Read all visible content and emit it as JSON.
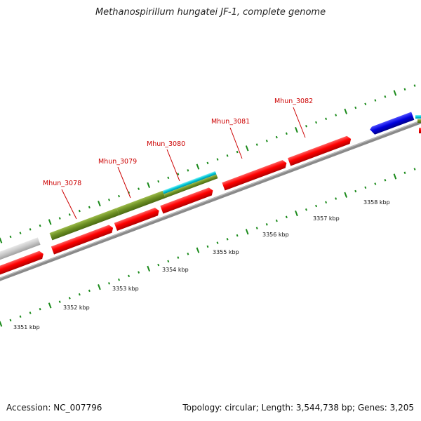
{
  "title": "Methanospirillum hungatei JF-1, complete genome",
  "footer": {
    "accession": "Accession: NC_007796",
    "summary": "Topology: circular; Length: 3,544,738 bp; Genes: 3,205"
  },
  "scale_labels": [
    "3351 kbp",
    "3352 kbp",
    "3353 kbp",
    "3354 kbp",
    "3355 kbp",
    "3356 kbp",
    "3357 kbp",
    "3358 kbp"
  ],
  "gene_labels": [
    "Mhun_3078",
    "Mhun_3079",
    "Mhun_3080",
    "Mhun_3081",
    "Mhun_3082"
  ],
  "colors": {
    "backbone": "#888888",
    "cds_red": "#ff0000",
    "gene_olive": "#6b8e23",
    "cyan": "#00c8d8",
    "blue": "#0000dd",
    "gray_feature": "#c8c8c8",
    "tick_green": "#1a8a1a",
    "label_red": "#cc0000"
  }
}
